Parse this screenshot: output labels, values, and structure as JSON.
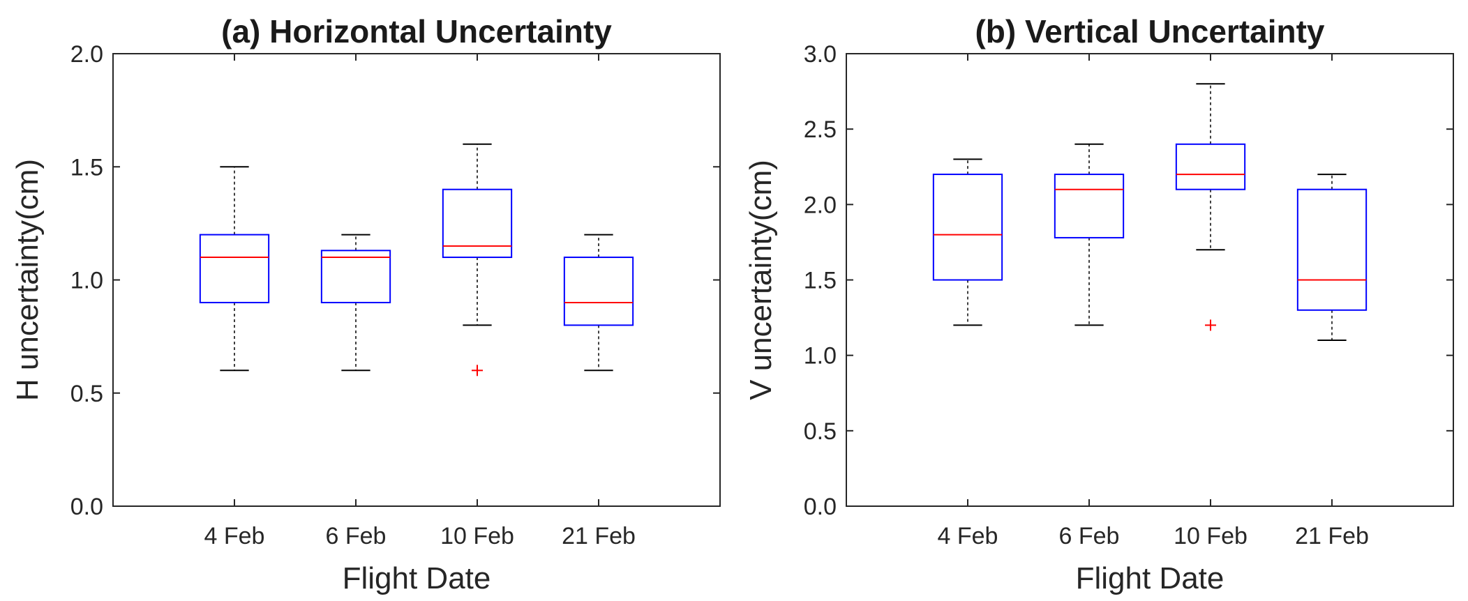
{
  "chart_data": [
    {
      "type": "box",
      "title": "(a) Horizontal Uncertainty",
      "xlabel": "Flight Date",
      "ylabel": "H uncertainty(cm)",
      "ylim": [
        0,
        2
      ],
      "yticks": [
        0,
        0.5,
        1,
        1.5,
        2
      ],
      "ytick_labels": [
        "0.0",
        "0.5",
        "1.0",
        "1.5",
        "2.0"
      ],
      "categories": [
        "4 Feb",
        "6 Feb",
        "10 Feb",
        "21 Feb"
      ],
      "boxes": [
        {
          "whisker_low": 0.6,
          "q1": 0.9,
          "median": 1.1,
          "q3": 1.2,
          "whisker_high": 1.5,
          "outliers": []
        },
        {
          "whisker_low": 0.6,
          "q1": 0.9,
          "median": 1.1,
          "q3": 1.13,
          "whisker_high": 1.2,
          "outliers": []
        },
        {
          "whisker_low": 0.8,
          "q1": 1.1,
          "median": 1.15,
          "q3": 1.4,
          "whisker_high": 1.6,
          "outliers": [
            0.6
          ]
        },
        {
          "whisker_low": 0.6,
          "q1": 0.8,
          "median": 0.9,
          "q3": 1.1,
          "whisker_high": 1.2,
          "outliers": []
        }
      ]
    },
    {
      "type": "box",
      "title": "(b) Vertical Uncertainty",
      "xlabel": "Flight Date",
      "ylabel": "V uncertainty(cm)",
      "ylim": [
        0,
        3
      ],
      "yticks": [
        0,
        0.5,
        1,
        1.5,
        2,
        2.5,
        3
      ],
      "ytick_labels": [
        "0.0",
        "0.5",
        "1.0",
        "1.5",
        "2.0",
        "2.5",
        "3.0"
      ],
      "categories": [
        "4 Feb",
        "6 Feb",
        "10 Feb",
        "21 Feb"
      ],
      "boxes": [
        {
          "whisker_low": 1.2,
          "q1": 1.5,
          "median": 1.8,
          "q3": 2.2,
          "whisker_high": 2.3,
          "outliers": []
        },
        {
          "whisker_low": 1.2,
          "q1": 1.78,
          "median": 2.1,
          "q3": 2.2,
          "whisker_high": 2.4,
          "outliers": []
        },
        {
          "whisker_low": 1.7,
          "q1": 2.1,
          "median": 2.2,
          "q3": 2.4,
          "whisker_high": 2.8,
          "outliers": [
            1.2
          ]
        },
        {
          "whisker_low": 1.1,
          "q1": 1.3,
          "median": 1.5,
          "q3": 2.1,
          "whisker_high": 2.2,
          "outliers": []
        }
      ]
    }
  ],
  "colors": {
    "box": "#0000ff",
    "median": "#ff0000",
    "whisker": "#000000",
    "outlier": "#ff0000",
    "axis": "#262626"
  }
}
